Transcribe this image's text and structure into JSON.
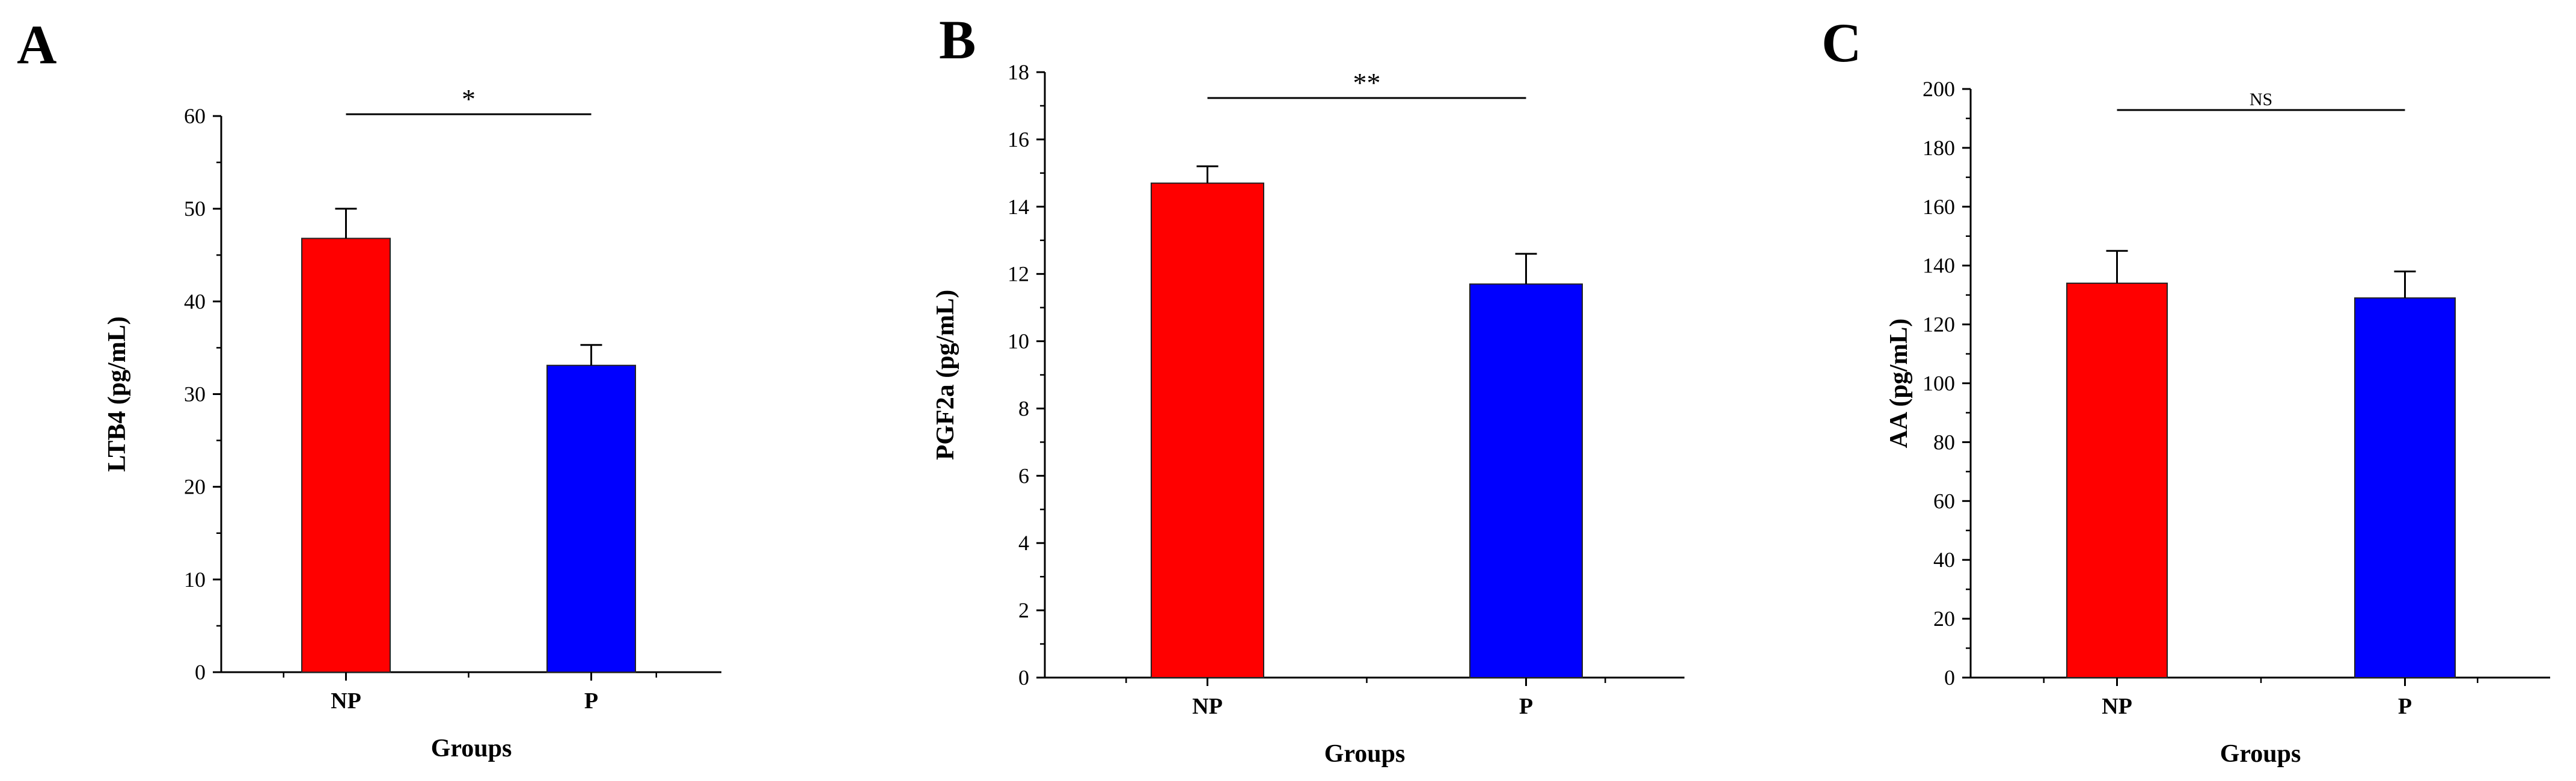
{
  "chart_data": [
    {
      "panel": "A",
      "type": "bar",
      "categories": [
        "NP",
        "P"
      ],
      "values": [
        46.8,
        33.1
      ],
      "errors": [
        3.2,
        2.2
      ],
      "colors": [
        "#ff0000",
        "#0000ff"
      ],
      "xlabel": "Groups",
      "ylabel": "LTB4 (pg/mL)",
      "ylim": [
        0,
        60
      ],
      "yticks": [
        0,
        10,
        20,
        30,
        40,
        50,
        60
      ],
      "significance": {
        "label": "*",
        "between": [
          "NP",
          "P"
        ]
      }
    },
    {
      "panel": "B",
      "type": "bar",
      "categories": [
        "NP",
        "P"
      ],
      "values": [
        14.7,
        11.7
      ],
      "errors": [
        0.5,
        0.9
      ],
      "colors": [
        "#ff0000",
        "#0000ff"
      ],
      "xlabel": "Groups",
      "ylabel": "PGF2a (pg/mL)",
      "ylim": [
        0,
        18
      ],
      "yticks": [
        0,
        2,
        4,
        6,
        8,
        10,
        12,
        14,
        16,
        18
      ],
      "significance": {
        "label": "**",
        "between": [
          "NP",
          "P"
        ]
      }
    },
    {
      "panel": "C",
      "type": "bar",
      "categories": [
        "NP",
        "P"
      ],
      "values": [
        134,
        129
      ],
      "errors": [
        11,
        9
      ],
      "colors": [
        "#ff0000",
        "#0000ff"
      ],
      "xlabel": "Groups",
      "ylabel": "AA (pg/mL)",
      "ylim": [
        0,
        200
      ],
      "yticks": [
        0,
        20,
        40,
        60,
        80,
        100,
        120,
        140,
        160,
        180,
        200
      ],
      "significance": {
        "label": "NS",
        "between": [
          "NP",
          "P"
        ]
      }
    }
  ]
}
